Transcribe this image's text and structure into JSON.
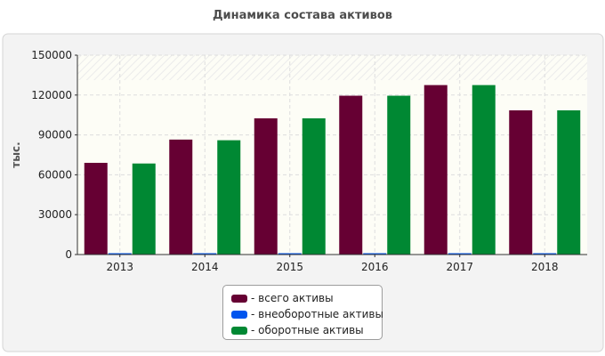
{
  "chart_data": {
    "type": "bar",
    "title": "Динамика состава активов",
    "xlabel": "",
    "ylabel": "тыс.",
    "categories": [
      "2013",
      "2014",
      "2015",
      "2016",
      "2017",
      "2018"
    ],
    "ylim": [
      0,
      150000
    ],
    "yticks": [
      "0",
      "30000",
      "60000",
      "90000",
      "120000",
      "150000"
    ],
    "grid": true,
    "legend_position": "bottom-center",
    "series": [
      {
        "name": "- всего активы",
        "color": "#660033",
        "values": [
          69000,
          86500,
          102500,
          119500,
          127500,
          108500
        ]
      },
      {
        "name": "- внеоборотные активы",
        "color": "#0055ee",
        "values": [
          700,
          700,
          700,
          700,
          700,
          700
        ]
      },
      {
        "name": "- оборотные активы",
        "color": "#008833",
        "values": [
          68500,
          86000,
          102500,
          119500,
          127500,
          108500
        ]
      }
    ]
  }
}
